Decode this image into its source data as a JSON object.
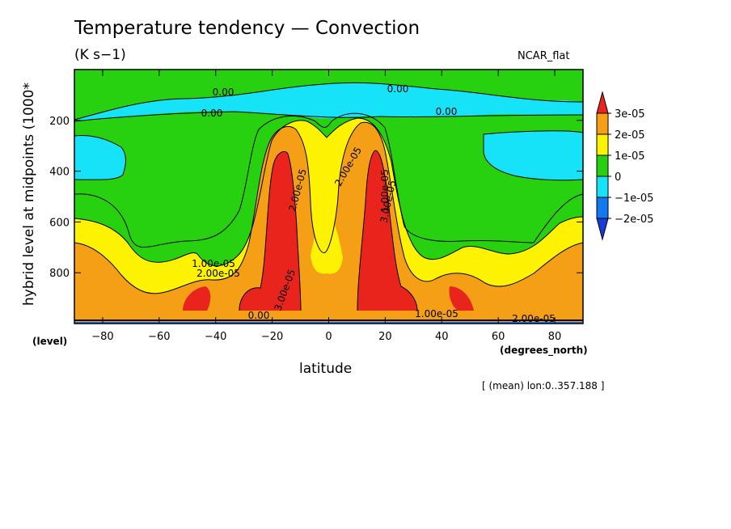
{
  "chart_data": {
    "type": "contour",
    "title": "Temperature tendency — Convection",
    "units": "(K s−1)",
    "palette": "NCAR_flat",
    "xlabel": "latitude",
    "xlabel_unit": "(degrees_north)",
    "ylabel": "hybrid level at midpoints (1000*",
    "ylabel_unit": "(level)",
    "footnote": "[ (mean) lon:0..357.188 ]",
    "x_range": [
      -90,
      90
    ],
    "y_range": [
      0,
      1000
    ],
    "y_inverted": true,
    "x_ticks": [
      -80,
      -60,
      -40,
      -20,
      0,
      20,
      40,
      60,
      80
    ],
    "y_ticks": [
      200,
      400,
      600,
      800
    ],
    "colorbar": {
      "levels": [
        "3e-05",
        "2e-05",
        "1e-05",
        "0",
        "−1e-05",
        "−2e-05"
      ],
      "colors": [
        "#e8241c",
        "#f59f16",
        "#fdf202",
        "#28d110",
        "#16e2f8",
        "#1478f0",
        "#1a3cd6"
      ]
    },
    "contour_labels": [
      "0.00",
      "0.00",
      "0.00",
      "0.00",
      "2.00e-05",
      "2.00e-05",
      "1.00e-05",
      "3.00e-05",
      "1.00e-05",
      "2.00e-05",
      "3.00e-05",
      "1.00e-05",
      "2.00e-05",
      "0.00"
    ]
  }
}
